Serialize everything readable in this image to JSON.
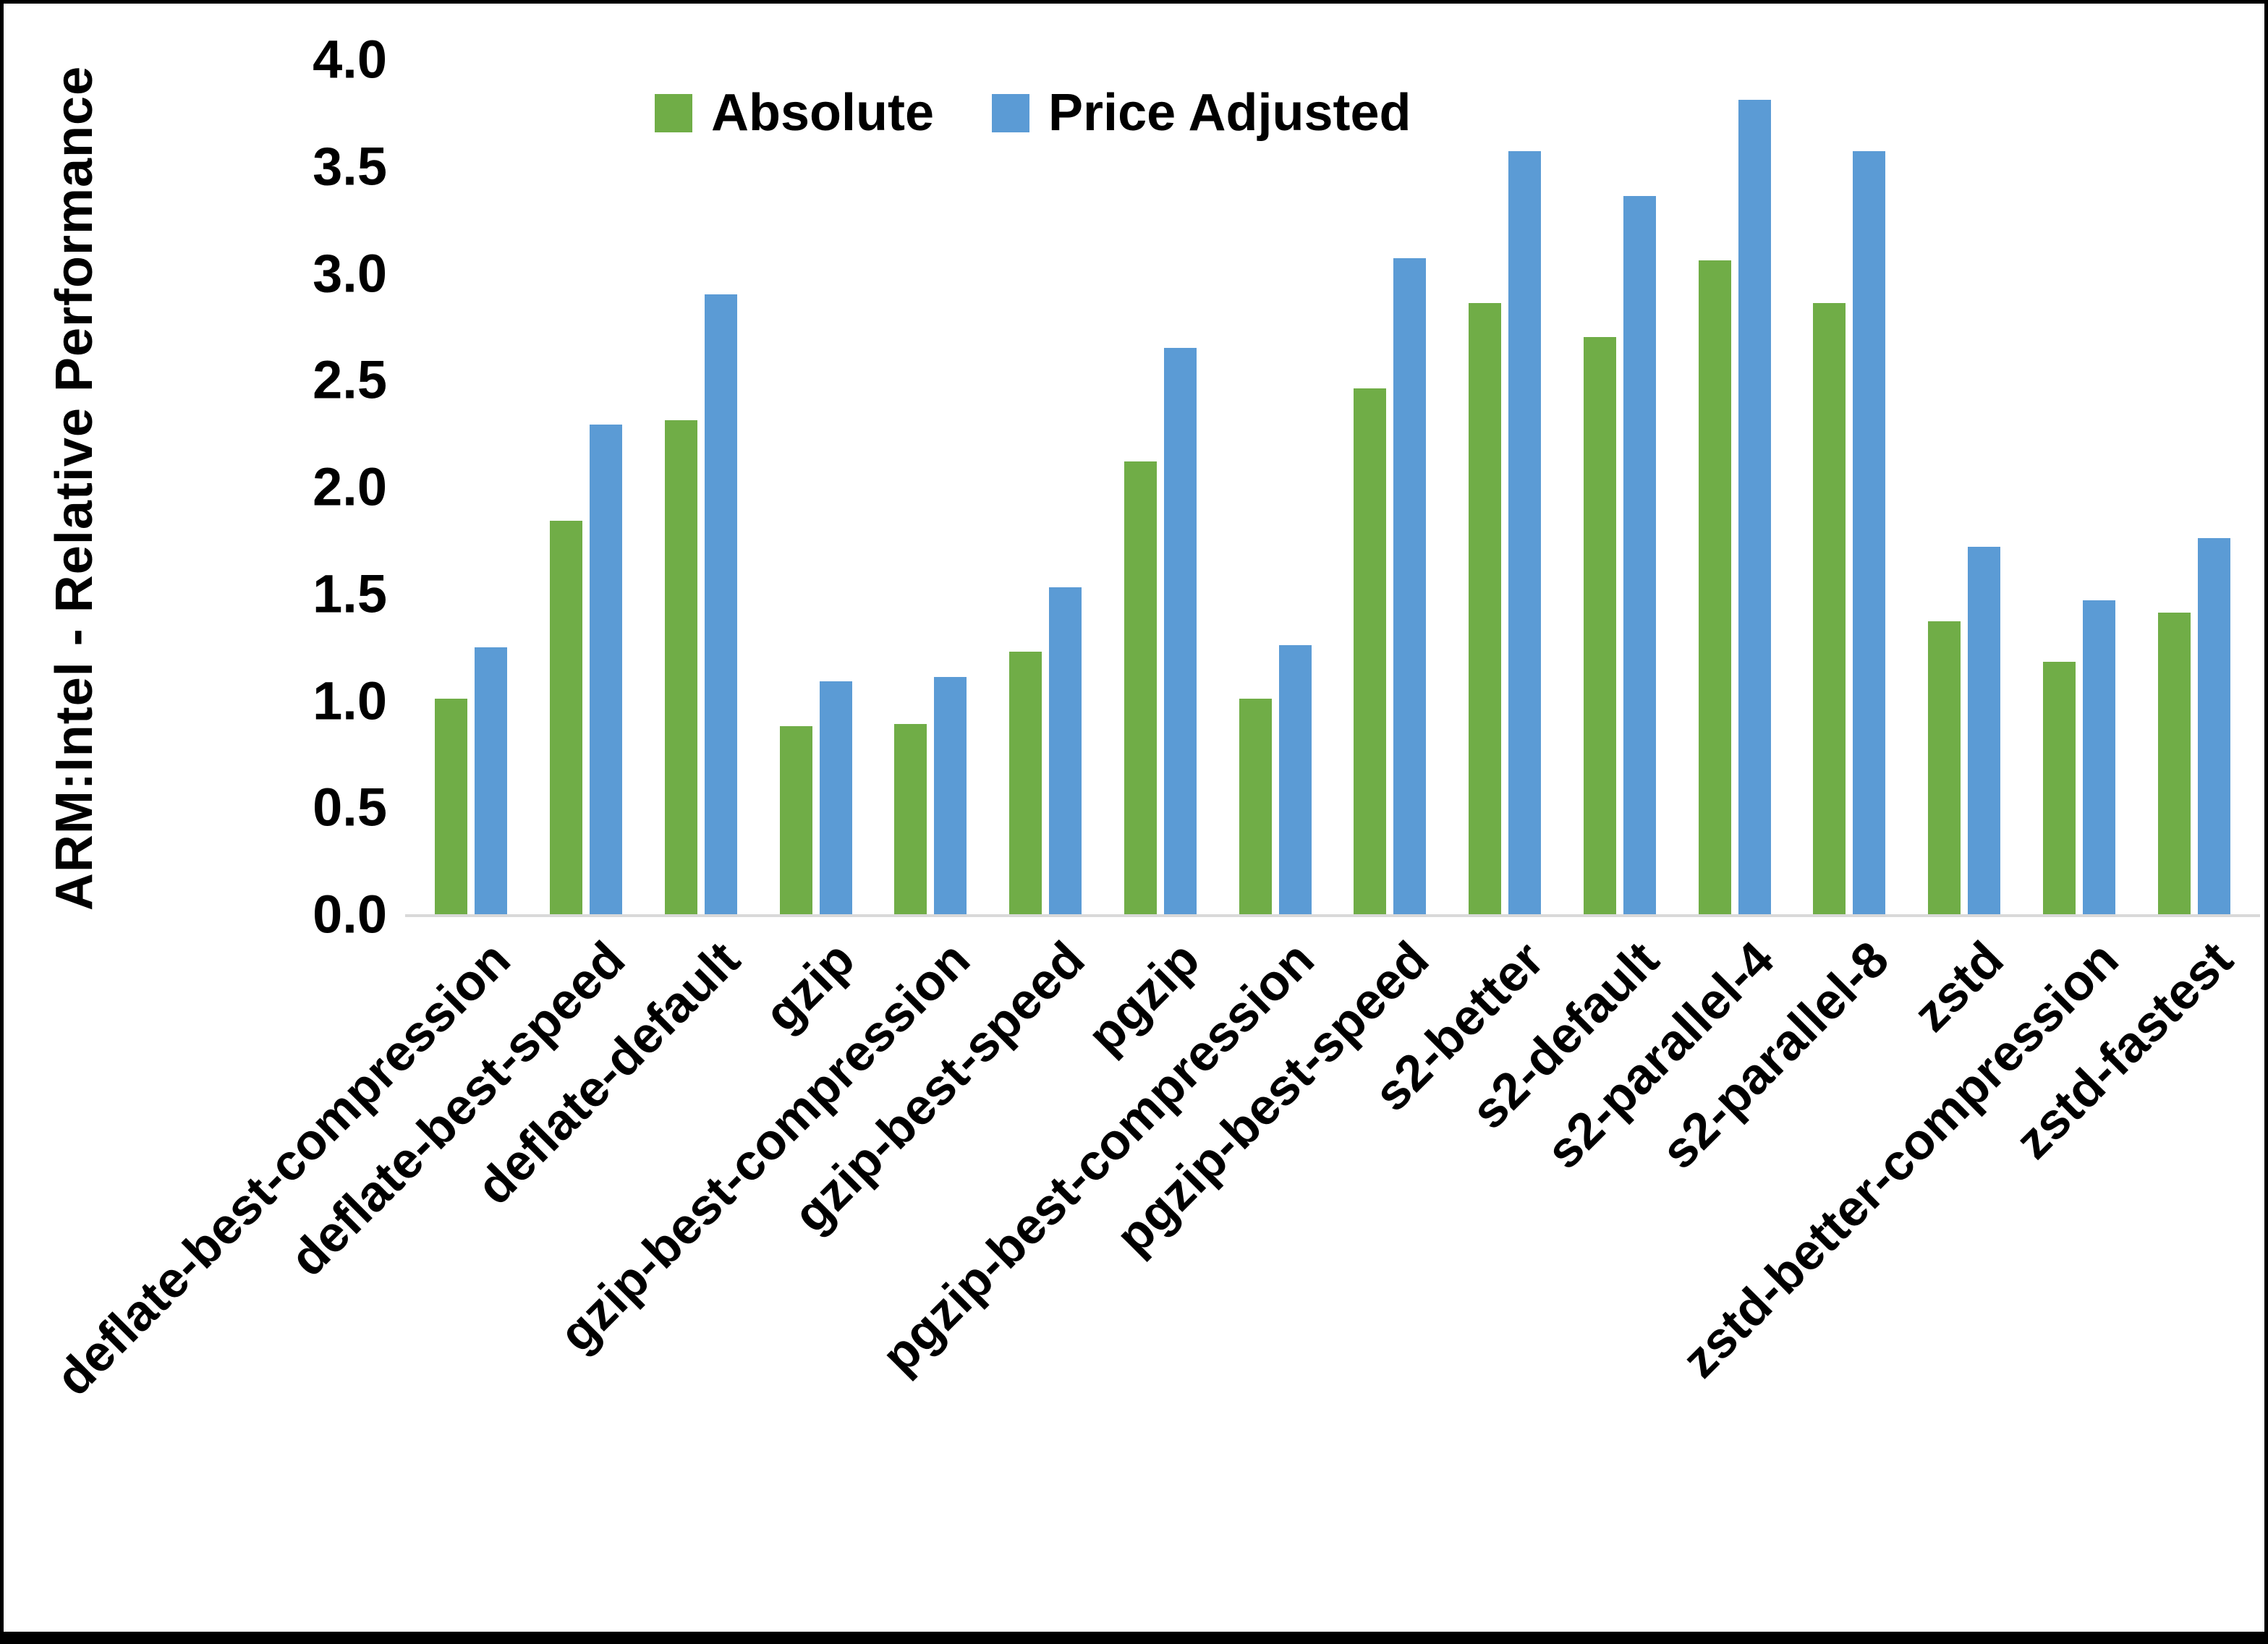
{
  "chart_data": {
    "type": "bar",
    "title": "",
    "xlabel": "",
    "ylabel": "ARM:Intel - Relative Performance",
    "ylim": [
      0,
      4.0
    ],
    "yticks": [
      0,
      0.5,
      1.0,
      1.5,
      2.0,
      2.5,
      3.0,
      3.5,
      4.0
    ],
    "ytick_format_decimals": 1,
    "grid": false,
    "legend_position": "top",
    "axis_line_color": "#d9d9d9",
    "text_color": "#000000",
    "categories": [
      "deflate-best-compression",
      "deflate-best-speed",
      "deflate-default",
      "gzip",
      "gzip-best-compression",
      "gzip-best-speed",
      "pgzip",
      "pgzip-best-compression",
      "pgzip-best-speed",
      "s2-better",
      "s2-default",
      "s2-parallel-4",
      "s2-parallel-8",
      "zstd",
      "zstd-better-compression",
      "zstd-fastest"
    ],
    "series": [
      {
        "name": "Absolute",
        "color": "#70AD47",
        "values": [
          1.01,
          1.84,
          2.31,
          0.88,
          0.89,
          1.23,
          2.12,
          1.01,
          2.46,
          2.86,
          2.7,
          3.06,
          2.86,
          1.37,
          1.18,
          1.41
        ]
      },
      {
        "name": "Price Adjusted",
        "color": "#5B9BD5",
        "values": [
          1.25,
          2.29,
          2.9,
          1.09,
          1.11,
          1.53,
          2.65,
          1.26,
          3.07,
          3.57,
          3.36,
          3.81,
          3.57,
          1.72,
          1.47,
          1.76
        ]
      }
    ]
  }
}
